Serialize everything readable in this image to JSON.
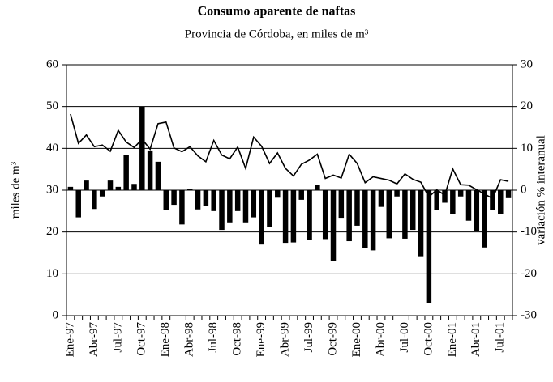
{
  "chart_data": {
    "type": "combo",
    "title": "Consumo aparente de naftas",
    "subtitle": "Provincia de Córdoba, en miles de m³",
    "ylabel": "miles de m³",
    "y2label": "variación % interanual",
    "categories": [
      "Ene-97",
      null,
      null,
      "Abr-97",
      null,
      null,
      "Jul-97",
      null,
      null,
      "Oct-97",
      null,
      null,
      "Ene-98",
      null,
      null,
      "Abr-98",
      null,
      null,
      "Jul-98",
      null,
      null,
      "Oct-98",
      null,
      null,
      "Ene-99",
      null,
      null,
      "Abr-99",
      null,
      null,
      "Jul-99",
      null,
      null,
      "Oct-99",
      null,
      null,
      "Ene-00",
      null,
      null,
      "Abr-00",
      null,
      null,
      "Jul-00",
      null,
      null,
      "Oct-00",
      null,
      null,
      "Ene-01",
      null,
      null,
      "Abr-01",
      null,
      null,
      "Jul-01",
      null
    ],
    "series": [
      {
        "type": "line",
        "color": "#000000",
        "values": [
          48.2,
          41.2,
          43.2,
          40.4,
          40.8,
          39.3,
          44.3,
          41.5,
          40.2,
          42.2,
          39.8,
          45.9,
          46.3,
          40.1,
          39.2,
          40.4,
          38.2,
          36.8,
          41.9,
          38.4,
          37.5,
          40.3,
          35.2,
          42.7,
          40.5,
          36.4,
          38.9,
          35.2,
          33.4,
          36.2,
          37.2,
          38.6,
          32.8,
          33.6,
          32.9,
          38.6,
          36.4,
          31.8,
          33.2,
          32.8,
          32.4,
          31.5,
          33.9,
          32.6,
          31.9,
          28.4,
          30.1,
          28.8,
          35.1,
          31.3,
          31.2,
          30.1,
          29.1,
          28.0,
          32.5,
          32.1
        ]
      },
      {
        "type": "bar",
        "axis": "y2",
        "color": "#000000",
        "values": [
          0.8,
          -6.5,
          2.3,
          -4.5,
          -1.5,
          2.3,
          0.8,
          8.5,
          1.5,
          20,
          9.5,
          6.8,
          -4.8,
          -3.5,
          -8.2,
          0.3,
          -4.6,
          -3.8,
          -5.0,
          -9.5,
          -7.7,
          -5.0,
          -7.7,
          -6.5,
          -13.0,
          -8.8,
          -1.8,
          -12.6,
          -12.5,
          -2.3,
          -12.0,
          1.2,
          -11.7,
          -17.0,
          -6.6,
          -12.2,
          -8.5,
          -13.9,
          -14.4,
          -4.0,
          -11.5,
          -1.5,
          -11.6,
          -9.5,
          -15.8,
          -27.0,
          -4.8,
          -3.0,
          -5.8,
          -1.5,
          -7.3,
          -9.7,
          -13.7,
          -4.7,
          -5.8,
          -1.9
        ]
      }
    ],
    "ylim": [
      0,
      60
    ],
    "yticks": [
      0,
      10,
      20,
      30,
      40,
      50,
      60
    ],
    "y2lim": [
      -30,
      30
    ],
    "y2ticks": [
      -30,
      -20,
      -10,
      0,
      10,
      20,
      30
    ],
    "grid": true
  }
}
